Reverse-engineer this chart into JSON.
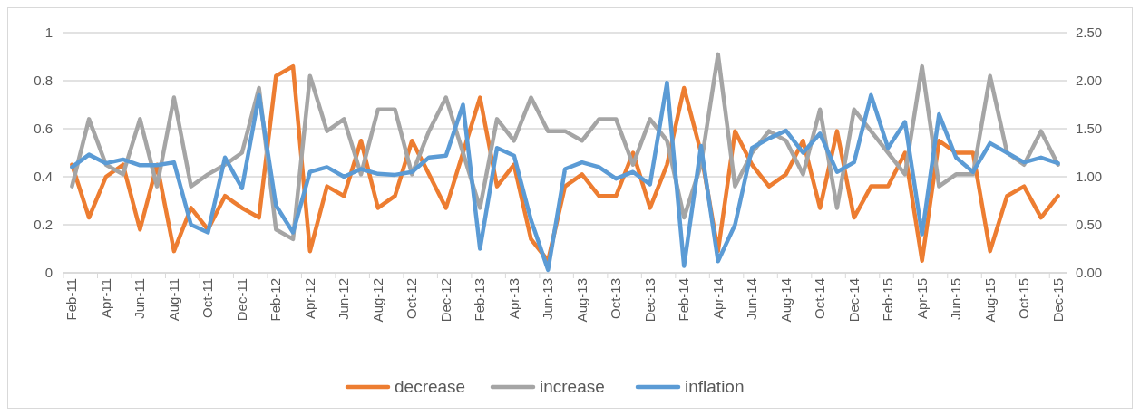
{
  "chart_data": {
    "type": "line",
    "categories": [
      "Feb-11",
      null,
      "Apr-11",
      null,
      "Jun-11",
      null,
      "Aug-11",
      null,
      "Oct-11",
      null,
      "Dec-11",
      null,
      "Feb-12",
      null,
      "Apr-12",
      null,
      "Jun-12",
      null,
      "Aug-12",
      null,
      "Oct-12",
      null,
      "Dec-12",
      null,
      "Feb-13",
      null,
      "Apr-13",
      null,
      "Jun-13",
      null,
      "Aug-13",
      null,
      "Oct-13",
      null,
      "Dec-13",
      null,
      "Feb-14",
      null,
      "Apr-14",
      null,
      "Jun-14",
      null,
      "Aug-14",
      null,
      "Oct-14",
      null,
      "Dec-14",
      null,
      "Feb-15",
      null,
      "Apr-15",
      null,
      "Jun-15",
      null,
      "Aug-15",
      null,
      "Oct-15",
      null,
      "Dec-15"
    ],
    "series": [
      {
        "name": "decrease",
        "color": "#ed7d31",
        "values": [
          0.45,
          0.23,
          0.4,
          0.45,
          0.18,
          0.45,
          0.09,
          0.27,
          0.18,
          0.32,
          0.27,
          0.23,
          0.82,
          0.86,
          0.09,
          0.36,
          0.32,
          0.55,
          0.27,
          0.32,
          0.55,
          0.41,
          0.27,
          0.5,
          0.73,
          0.36,
          0.45,
          0.14,
          0.05,
          0.36,
          0.41,
          0.32,
          0.32,
          0.5,
          0.27,
          0.45,
          0.77,
          0.5,
          0.09,
          0.59,
          0.45,
          0.36,
          0.41,
          0.55,
          0.27,
          0.59,
          0.23,
          0.36,
          0.36,
          0.5,
          0.05,
          0.55,
          0.5,
          0.5,
          0.09,
          0.32,
          0.36,
          0.23,
          0.32
        ]
      },
      {
        "name": "increase",
        "color": "#a5a5a5",
        "values": [
          0.36,
          0.64,
          0.45,
          0.41,
          0.64,
          0.36,
          0.73,
          0.36,
          0.41,
          0.45,
          0.5,
          0.77,
          0.18,
          0.14,
          0.82,
          0.59,
          0.64,
          0.41,
          0.68,
          0.68,
          0.41,
          0.59,
          0.73,
          0.5,
          0.27,
          0.64,
          0.55,
          0.73,
          0.59,
          0.59,
          0.55,
          0.64,
          0.64,
          0.45,
          0.64,
          0.55,
          0.23,
          0.45,
          0.91,
          0.36,
          0.5,
          0.59,
          0.55,
          0.41,
          0.68,
          0.27,
          0.68,
          0.59,
          0.5,
          0.41,
          0.86,
          0.36,
          0.41,
          0.41,
          0.82,
          0.5,
          0.45,
          0.59,
          0.45
        ]
      },
      {
        "name": "inflation",
        "color": "#5b9bd5",
        "axis": "y2",
        "values": [
          1.1,
          1.23,
          1.14,
          1.18,
          1.12,
          1.12,
          1.15,
          0.5,
          0.42,
          1.2,
          0.88,
          1.85,
          0.7,
          0.42,
          1.05,
          1.1,
          1.0,
          1.08,
          1.03,
          1.02,
          1.05,
          1.2,
          1.22,
          1.75,
          0.25,
          1.3,
          1.22,
          0.55,
          0.03,
          1.08,
          1.15,
          1.1,
          0.98,
          1.05,
          0.92,
          1.98,
          0.07,
          1.32,
          0.12,
          0.5,
          1.3,
          1.4,
          1.48,
          1.25,
          1.45,
          1.05,
          1.15,
          1.85,
          1.3,
          1.57,
          0.4,
          1.65,
          1.2,
          1.05,
          1.35,
          1.25,
          1.15,
          1.2,
          1.14
        ]
      }
    ],
    "ylim": [
      0,
      1
    ],
    "yticks": [
      0,
      0.2,
      0.4,
      0.6,
      0.8,
      1
    ],
    "y2lim": [
      0,
      2.5
    ],
    "y2ticks": [
      {
        "value": 0,
        "label": "0.00"
      },
      {
        "value": 0.5,
        "label": "0.50"
      },
      {
        "value": 1,
        "label": "1.00"
      },
      {
        "value": 1.5,
        "label": "1.50"
      },
      {
        "value": 2,
        "label": "2.00"
      },
      {
        "value": 2.5,
        "label": "2.50"
      }
    ],
    "grid": "y",
    "legend": "bottom",
    "line_style": "solid",
    "marker": "none"
  }
}
